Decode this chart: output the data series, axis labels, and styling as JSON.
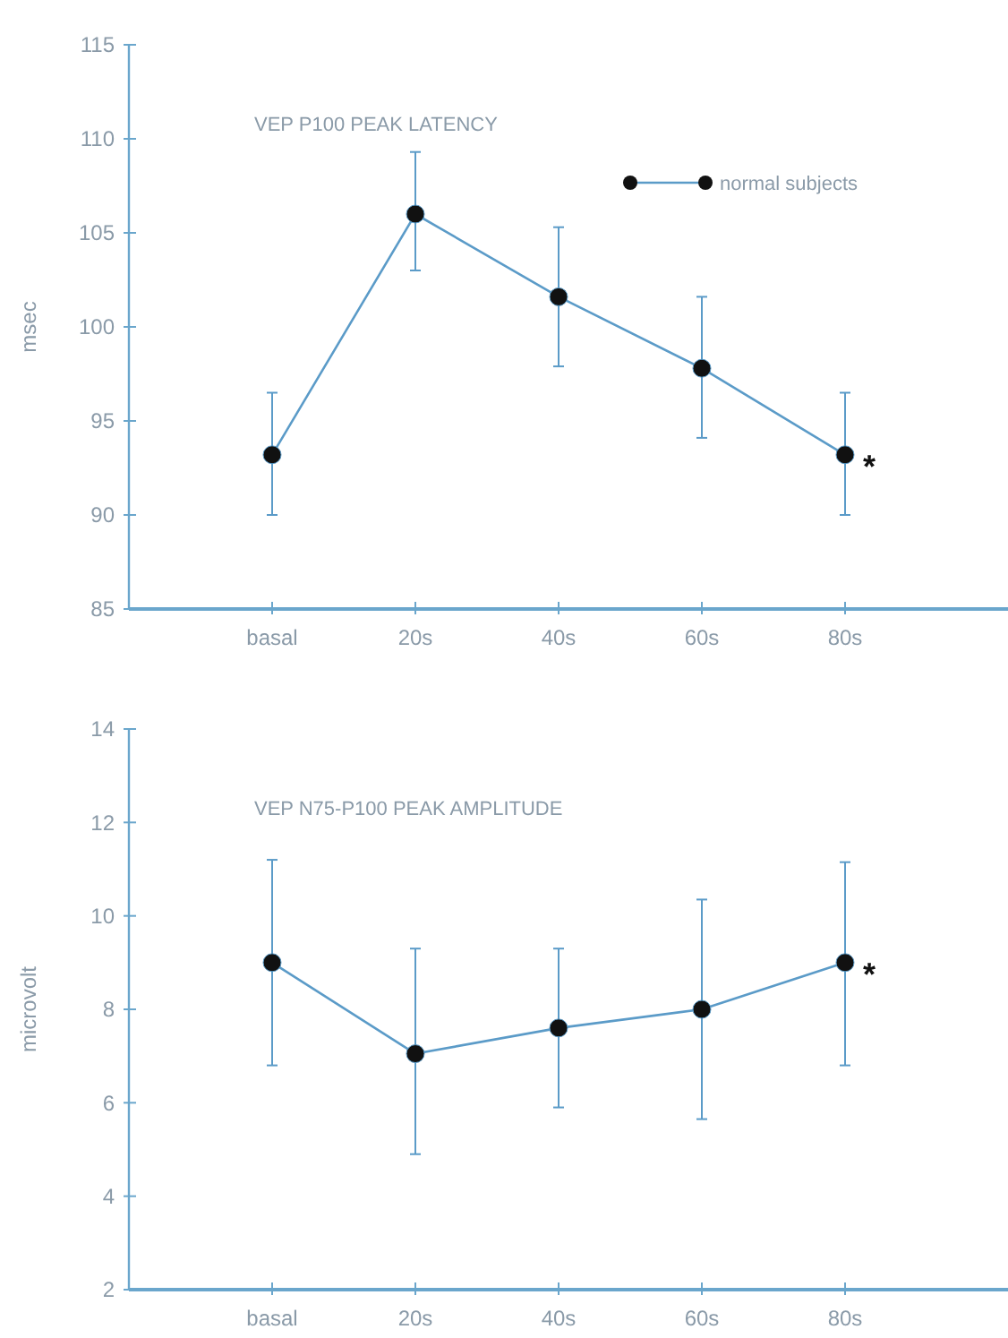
{
  "chart_data": [
    {
      "type": "line",
      "title": "VEP P100 PEAK LATENCY",
      "ylabel": "msec",
      "categories": [
        "basal",
        "20s",
        "40s",
        "60s",
        "80s"
      ],
      "series": [
        {
          "name": "normal subjects",
          "color": "#5b9bc8",
          "values": [
            93.2,
            106,
            101.6,
            97.8,
            93.2
          ],
          "errors": [
            [
              90.0,
              96.5
            ],
            [
              103.0,
              109.3
            ],
            [
              97.9,
              105.3
            ],
            [
              94.1,
              101.6
            ],
            [
              90.0,
              96.5
            ]
          ]
        }
      ],
      "ylim": [
        85,
        115
      ],
      "yticks": [
        85,
        90,
        95,
        100,
        105,
        110,
        115
      ],
      "marker": "circle",
      "line_style": "solid",
      "legend": "top right",
      "grid": false,
      "annotations": [
        {
          "text": "*",
          "x": "80s",
          "y": 93.2
        }
      ]
    },
    {
      "type": "line",
      "title": "VEP N75-P100 PEAK AMPLITUDE",
      "ylabel": "microvolt",
      "categories": [
        "basal",
        "20s",
        "40s",
        "60s",
        "80s"
      ],
      "series": [
        {
          "color": "#5b9bc8",
          "values": [
            9.0,
            7.05,
            7.6,
            8.0,
            9.0
          ],
          "errors": [
            [
              6.8,
              11.2
            ],
            [
              4.9,
              9.3
            ],
            [
              5.9,
              9.3
            ],
            [
              5.65,
              10.35
            ],
            [
              6.8,
              11.15
            ]
          ]
        }
      ],
      "ylim": [
        2,
        14
      ],
      "yticks": [
        2,
        4,
        6,
        8,
        10,
        12,
        14
      ],
      "marker": "circle",
      "line_style": "solid",
      "legend": false,
      "grid": false,
      "annotations": [
        {
          "text": "*",
          "x": "80s",
          "y": 9.0
        }
      ]
    }
  ]
}
